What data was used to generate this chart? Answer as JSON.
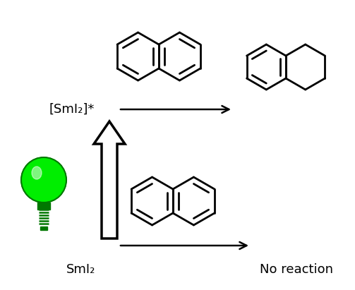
{
  "bg_color": "#ffffff",
  "text_color": "#000000",
  "green_color": "#00ee00",
  "dark_green": "#007700",
  "label_smi2_star": "[SmI₂]*",
  "label_smi2": "SmI₂",
  "label_no_reaction": "No reaction",
  "figsize": [
    5.03,
    4.11
  ],
  "dpi": 100
}
